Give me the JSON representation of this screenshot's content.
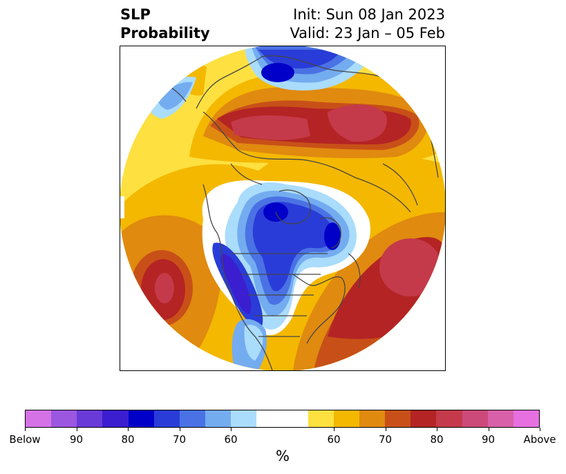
{
  "title": {
    "left_line1": "SLP",
    "left_line2": "Probability",
    "right_line1": "Init: Sun 08 Jan 2023",
    "right_line2": "Valid: 23 Jan – 05 Feb"
  },
  "colorbar": {
    "colors": [
      "#d472e6",
      "#9c57e0",
      "#6a3ad8",
      "#3a1ed0",
      "#0000c8",
      "#2a3cd8",
      "#4a72e4",
      "#74acf0",
      "#aadcfc",
      "#ffffff",
      "#fee040",
      "#f4b800",
      "#e08a10",
      "#c85018",
      "#b42424",
      "#c43a4a",
      "#cc4a7a",
      "#d860a8",
      "#e670e0"
    ],
    "tick_labels": [
      "Below",
      "90",
      "80",
      "70",
      "60",
      "60",
      "70",
      "80",
      "90",
      "Above"
    ],
    "units": "%"
  },
  "map": {
    "colors": {
      "coast": "#454545",
      "above_light": "#fee040",
      "above_60": "#f4b800",
      "above_70": "#e08a10",
      "above_75": "#c85018",
      "above_80": "#b42424",
      "above_85": "#c43a4a",
      "below_light": "#aadcfc",
      "below_60": "#74acf0",
      "below_70": "#4a72e4",
      "below_80": "#2a3cd8",
      "below_90": "#0000c8",
      "below_95": "#3a1ed0"
    }
  }
}
